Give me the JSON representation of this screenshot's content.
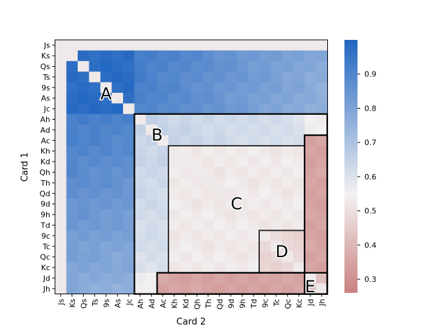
{
  "chart_data": {
    "type": "heatmap",
    "xlabel": "Card 2",
    "ylabel": "Card 1",
    "rows": [
      "Js",
      "Ks",
      "Qs",
      "Ts",
      "9s",
      "As",
      "Jc",
      "Ah",
      "Ad",
      "Ac",
      "Kh",
      "Kd",
      "Qh",
      "Th",
      "Qd",
      "9d",
      "9h",
      "Td",
      "9c",
      "Tc",
      "Qc",
      "Kc",
      "Jd",
      "Jh"
    ],
    "cols": [
      "Js",
      "Ks",
      "Qs",
      "Ts",
      "9s",
      "As",
      "Jc",
      "Ah",
      "Ad",
      "Ac",
      "Kh",
      "Kd",
      "Qh",
      "Th",
      "Qd",
      "9d",
      "9h",
      "Td",
      "9c",
      "Tc",
      "Qc",
      "Kc",
      "Jd",
      "Jh"
    ],
    "colorbar": {
      "min": 0.26,
      "max": 1.0,
      "ticks": [
        "0.3",
        "0.4",
        "0.5",
        "0.6",
        "0.7",
        "0.8",
        "0.9"
      ],
      "tick_values": [
        0.3,
        0.4,
        0.5,
        0.6,
        0.7,
        0.8,
        0.9
      ],
      "low_color": "#c8817f",
      "mid_color": "#f3f1f1",
      "high_color": "#2166c1",
      "mid_value": 0.55
    },
    "blocks": [
      {
        "label": "A",
        "value": 0.98
      },
      {
        "label": "B",
        "value": 0.64
      },
      {
        "label": "C",
        "value": 0.53
      },
      {
        "label": "D",
        "value": 0.48
      },
      {
        "label": "E",
        "value": 0.35
      }
    ],
    "boxes": [
      {
        "label": "B",
        "rows": [
          7,
          23
        ],
        "cols": [
          7,
          23
        ]
      },
      {
        "label": "C",
        "rows": [
          10,
          21
        ],
        "cols": [
          10,
          21
        ]
      },
      {
        "label": "D",
        "rows": [
          18,
          21
        ],
        "cols": [
          18,
          21
        ]
      },
      {
        "label": "E1",
        "rows": [
          22,
          23
        ],
        "cols": [
          9,
          23
        ]
      },
      {
        "label": "E2",
        "rows": [
          9,
          23
        ],
        "cols": [
          22,
          23
        ]
      }
    ],
    "annotations": [
      {
        "text": "A",
        "row": 4.6,
        "col": 4.0
      },
      {
        "text": "B",
        "row": 8.5,
        "col": 8.5
      },
      {
        "text": "C",
        "row": 15.0,
        "col": 15.5
      },
      {
        "text": "D",
        "row": 19.5,
        "col": 19.5
      },
      {
        "text": "E",
        "row": 22.8,
        "col": 22.0
      }
    ],
    "grid": false
  }
}
